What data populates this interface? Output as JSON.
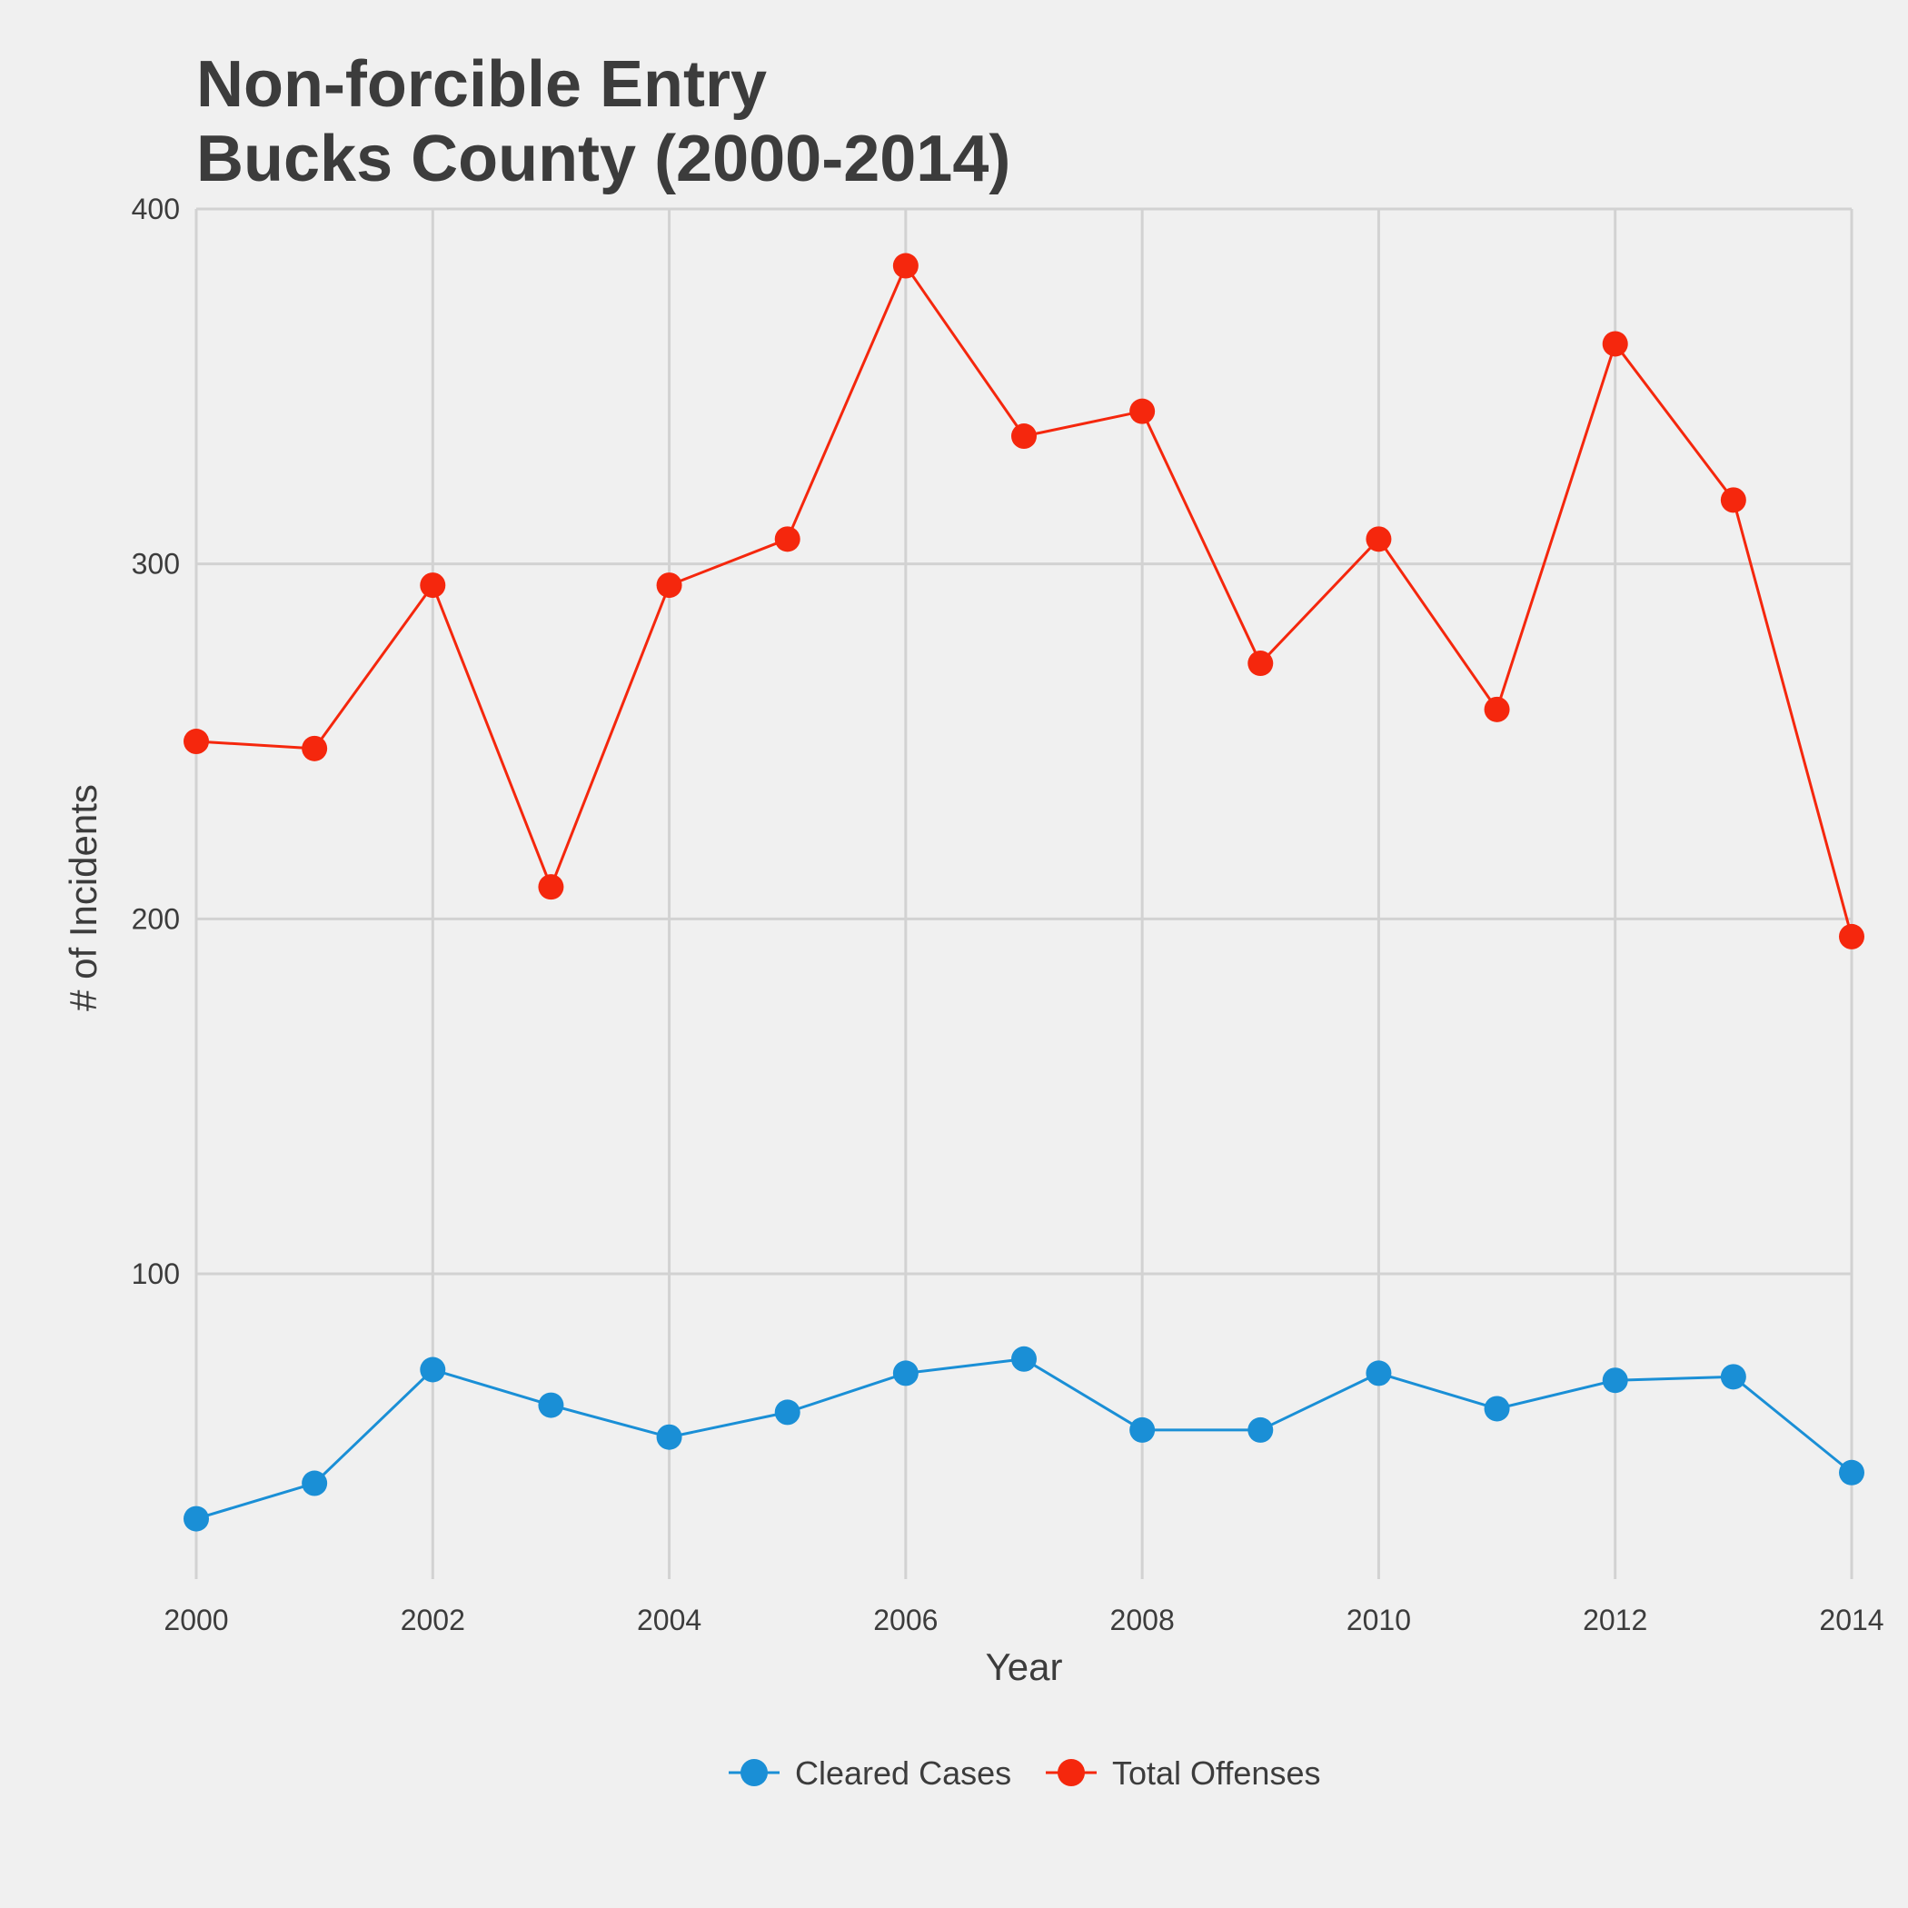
{
  "chart_data": {
    "type": "line",
    "title": [
      "Non-forcible Entry",
      "Bucks County (2000-2014)"
    ],
    "xlabel": "Year",
    "ylabel": "# of Incidents",
    "x": [
      2000,
      2001,
      2002,
      2003,
      2004,
      2005,
      2006,
      2007,
      2008,
      2009,
      2010,
      2011,
      2012,
      2013,
      2014
    ],
    "xlim": [
      2000,
      2014
    ],
    "ylim": [
      14,
      400
    ],
    "xticks": [
      "2000",
      "2002",
      "2004",
      "2006",
      "2008",
      "2010",
      "2012",
      "2014"
    ],
    "yticks": [
      "100",
      "200",
      "300",
      "400"
    ],
    "grid": true,
    "legend_position": "bottom",
    "series": [
      {
        "name": "Cleared Cases",
        "color": "#1a8fd6",
        "values": [
          31,
          41,
          73,
          63,
          54,
          61,
          72,
          76,
          56,
          56,
          72,
          62,
          70,
          71,
          44
        ]
      },
      {
        "name": "Total Offenses",
        "color": "#f5270d",
        "values": [
          250,
          248,
          294,
          209,
          294,
          307,
          384,
          336,
          343,
          272,
          307,
          259,
          362,
          318,
          195
        ]
      }
    ]
  }
}
